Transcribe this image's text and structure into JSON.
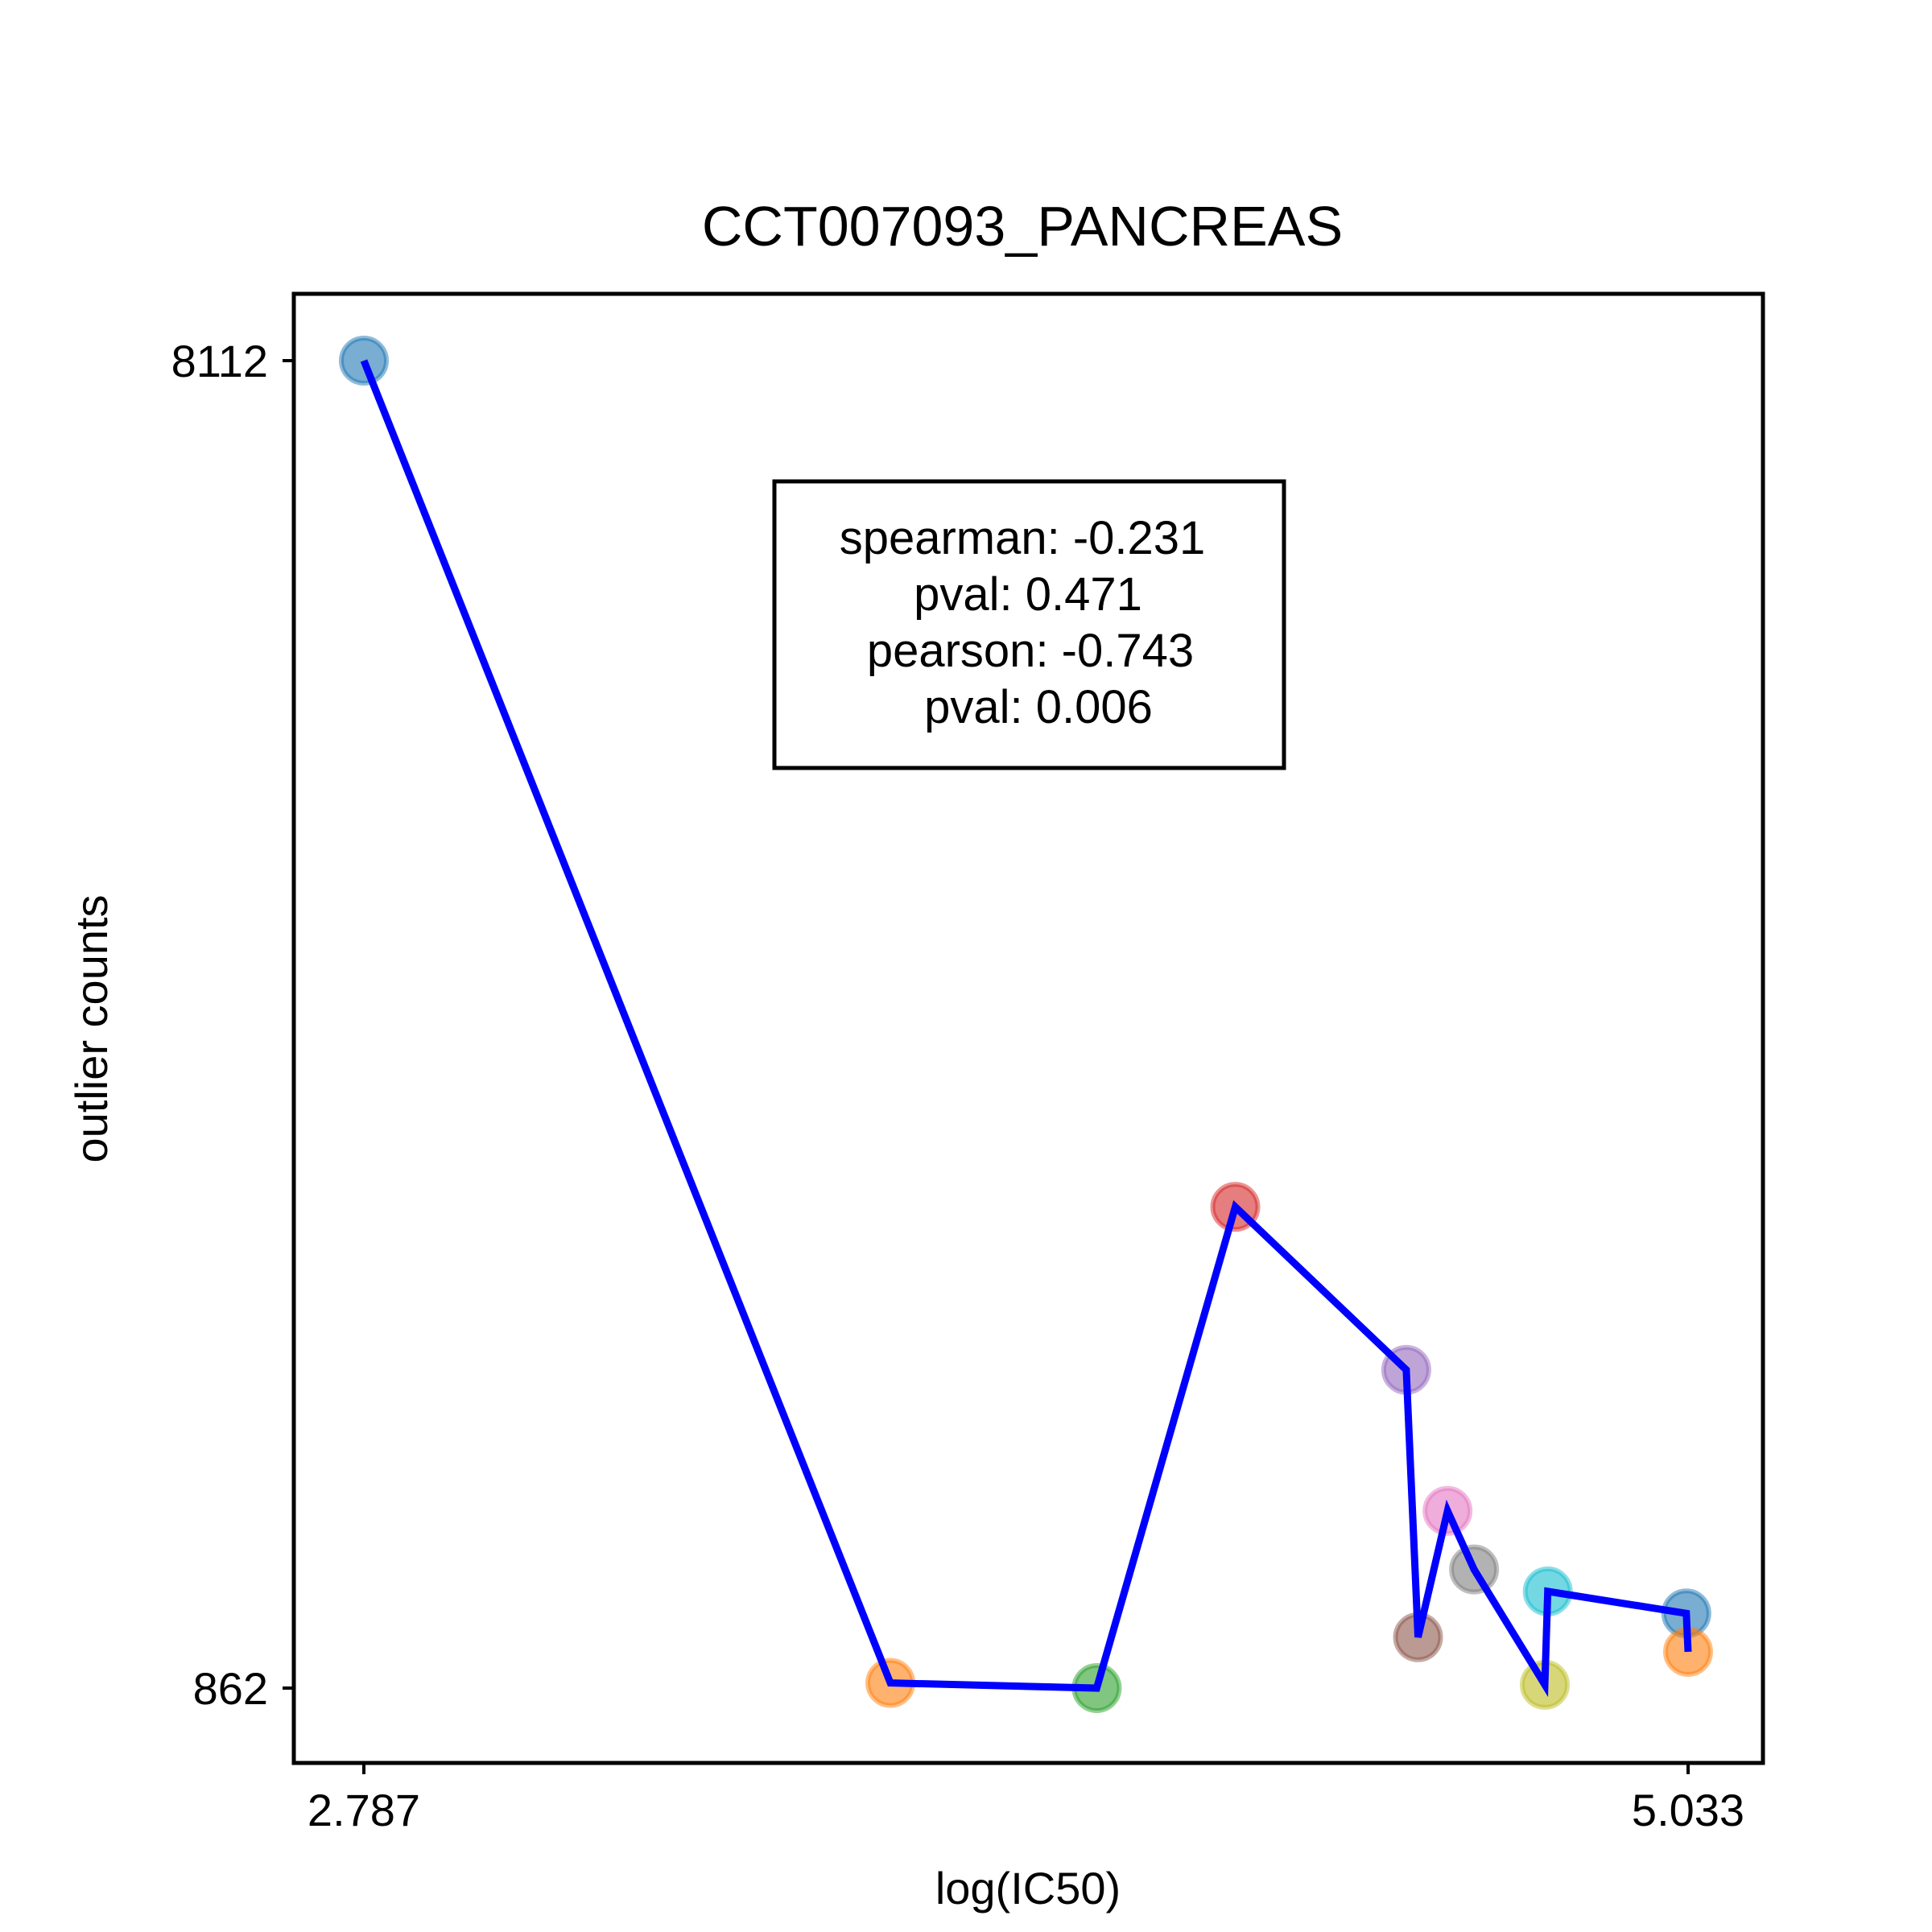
{
  "chart_data": {
    "type": "scatter",
    "title": "CCT007093_PANCREAS",
    "xlabel": "log(IC50)",
    "ylabel": "outlier counts",
    "xlim": [
      2.787,
      5.033
    ],
    "ylim": [
      862,
      8112
    ],
    "x_ticks": [
      "2.787",
      "5.033"
    ],
    "y_ticks": [
      "862",
      "8112"
    ],
    "line_color": "#0000ff",
    "series": [
      {
        "points": [
          {
            "x": 2.787,
            "y": 8112,
            "color": "#1f77b4"
          },
          {
            "x": 3.68,
            "y": 890,
            "color": "#ff7f0e"
          },
          {
            "x": 4.03,
            "y": 862,
            "color": "#2ca02c"
          },
          {
            "x": 4.265,
            "y": 3490,
            "color": "#d62728"
          },
          {
            "x": 4.555,
            "y": 2600,
            "color": "#9467bd"
          },
          {
            "x": 4.575,
            "y": 1140,
            "color": "#8c564b"
          },
          {
            "x": 4.625,
            "y": 1830,
            "color": "#e377c2"
          },
          {
            "x": 4.67,
            "y": 1510,
            "color": "#7f7f7f"
          },
          {
            "x": 4.79,
            "y": 880,
            "color": "#bcbd22"
          },
          {
            "x": 4.795,
            "y": 1390,
            "color": "#17becf"
          },
          {
            "x": 5.03,
            "y": 1270,
            "color": "#1f77b4"
          },
          {
            "x": 5.033,
            "y": 1060,
            "color": "#ff7f0e"
          }
        ]
      }
    ],
    "annotation": {
      "lines": [
        "spearman: -0.231",
        "pval: 0.471",
        "pearson: -0.743",
        "pval: 0.006"
      ]
    },
    "grid": false,
    "legend": "none"
  }
}
